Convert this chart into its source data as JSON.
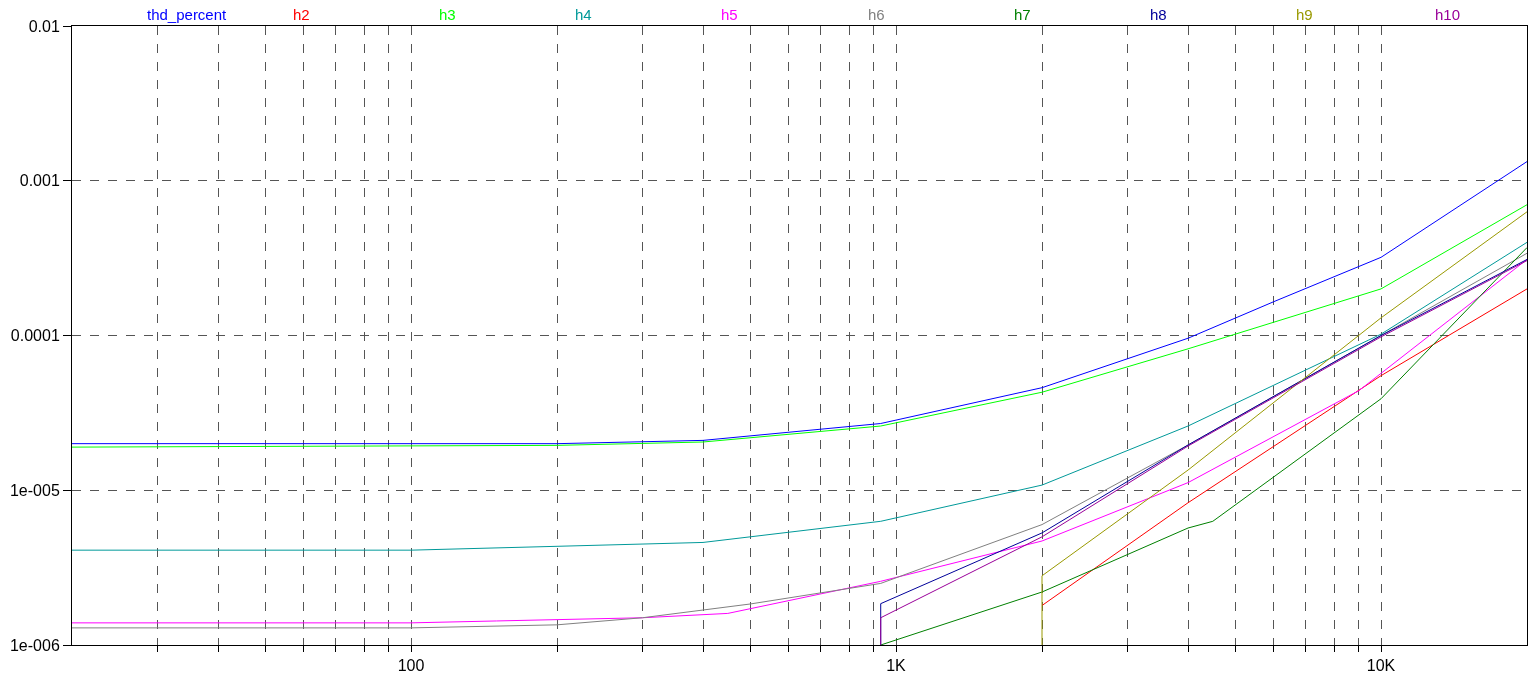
{
  "chart_data": {
    "type": "line",
    "log": "xy",
    "grid": true,
    "legend": "top",
    "marker": "none",
    "line_style": "solid",
    "xlim": [
      20,
      20000
    ],
    "ylim": [
      1e-06,
      0.01
    ],
    "xticks": [
      {
        "value": 30,
        "label": null
      },
      {
        "value": 40,
        "label": null
      },
      {
        "value": 50,
        "label": null
      },
      {
        "value": 60,
        "label": null
      },
      {
        "value": 70,
        "label": null
      },
      {
        "value": 80,
        "label": null
      },
      {
        "value": 90,
        "label": null
      },
      {
        "value": 100,
        "label": "100"
      },
      {
        "value": 200,
        "label": null
      },
      {
        "value": 300,
        "label": null
      },
      {
        "value": 400,
        "label": null
      },
      {
        "value": 500,
        "label": null
      },
      {
        "value": 600,
        "label": null
      },
      {
        "value": 700,
        "label": null
      },
      {
        "value": 800,
        "label": null
      },
      {
        "value": 900,
        "label": null
      },
      {
        "value": 1000,
        "label": "1K"
      },
      {
        "value": 2000,
        "label": null
      },
      {
        "value": 3000,
        "label": null
      },
      {
        "value": 4000,
        "label": null
      },
      {
        "value": 5000,
        "label": null
      },
      {
        "value": 6000,
        "label": null
      },
      {
        "value": 7000,
        "label": null
      },
      {
        "value": 8000,
        "label": null
      },
      {
        "value": 9000,
        "label": null
      },
      {
        "value": 10000,
        "label": "10K"
      }
    ],
    "yticks": [
      {
        "value": 1e-06,
        "label": "1e-006"
      },
      {
        "value": 1e-05,
        "label": "1e-005"
      },
      0.0001,
      0.001,
      0.01
    ],
    "series": [
      {
        "name": "thd_percent",
        "color": "#0000ff",
        "x": [
          20,
          200,
          400,
          930,
          2000,
          4000,
          6000,
          10000,
          20000
        ],
        "values": [
          2e-05,
          2e-05,
          2.1e-05,
          2.7e-05,
          4.6e-05,
          9.6e-05,
          0.000165,
          0.00032,
          0.00133
        ]
      },
      {
        "name": "h2",
        "color": "#ff0000",
        "x": [
          2000,
          4000,
          10000,
          20000
        ],
        "values": [
          1.8e-06,
          8.3e-06,
          5.5e-05,
          0.0002
        ]
      },
      {
        "name": "h3",
        "color": "#00ff00",
        "x": [
          20,
          200,
          400,
          930,
          2000,
          4000,
          10000,
          20000
        ],
        "values": [
          1.9e-05,
          1.95e-05,
          2.05e-05,
          2.6e-05,
          4.3e-05,
          8.2e-05,
          0.0002,
          0.0007
        ]
      },
      {
        "name": "h4",
        "color": "#009999",
        "x": [
          20,
          100,
          400,
          930,
          2000,
          4000,
          10000,
          20000
        ],
        "values": [
          4.1e-06,
          4.1e-06,
          4.6e-06,
          6.3e-06,
          1.08e-05,
          2.6e-05,
          0.000102,
          0.0004
        ]
      },
      {
        "name": "h5",
        "color": "#ff00ff",
        "x": [
          20,
          100,
          150,
          300,
          450,
          930,
          2000,
          4000,
          9000,
          20000
        ],
        "values": [
          1.39e-06,
          1.39e-06,
          1.43e-06,
          1.5e-06,
          1.6e-06,
          2.58e-06,
          4.7e-06,
          1.12e-05,
          4.4e-05,
          0.00031
        ]
      },
      {
        "name": "h6",
        "color": "#808080",
        "x": [
          20,
          100,
          200,
          300,
          500,
          930,
          2000,
          4000,
          10000,
          20000
        ],
        "values": [
          1.29e-06,
          1.29e-06,
          1.35e-06,
          1.5e-06,
          1.84e-06,
          2.5e-06,
          6e-06,
          1.96e-05,
          0.0001,
          0.00034
        ]
      },
      {
        "name": "h7",
        "color": "#008000",
        "x": [
          930,
          2000,
          4000,
          4500,
          10000,
          20000
        ],
        "values": [
          1e-06,
          2.2e-06,
          5.7e-06,
          6.3e-06,
          3.9e-05,
          0.00037
        ]
      },
      {
        "name": "h8",
        "color": "#000099",
        "x": [
          930,
          930,
          2000,
          4000,
          10000,
          20000
        ],
        "values": [
          1e-06,
          1.85e-06,
          5.3e-06,
          1.96e-05,
          0.0001,
          0.00031
        ]
      },
      {
        "name": "h9",
        "color": "#999900",
        "x": [
          2000,
          2000,
          4000,
          10000,
          20000
        ],
        "values": [
          1e-06,
          2.8e-06,
          1.35e-05,
          0.00013,
          0.00063
        ]
      },
      {
        "name": "h10",
        "color": "#990099",
        "x": [
          930,
          930,
          2000,
          4000,
          10000,
          20000
        ],
        "values": [
          1e-06,
          1.5e-06,
          5e-06,
          1.93e-05,
          9.8e-05,
          0.000305
        ]
      }
    ]
  }
}
